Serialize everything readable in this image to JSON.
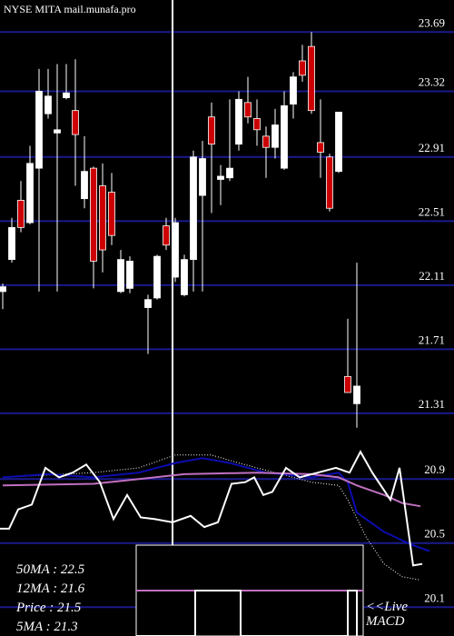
{
  "chart_data": {
    "type": "candlestick",
    "title": "NYSE MITA mail.munafa.pro",
    "x": [
      0,
      1,
      2,
      3,
      4,
      5,
      6,
      7,
      8,
      9,
      10,
      11,
      12,
      13,
      14,
      16,
      17,
      18,
      19,
      20,
      21,
      22,
      23,
      24,
      25,
      26,
      27,
      28,
      29,
      30,
      31,
      32,
      33,
      34,
      35,
      36,
      37,
      38,
      39
    ],
    "open": [
      22.07,
      22.27,
      22.64,
      22.5,
      22.84,
      23.18,
      23.06,
      23.28,
      23.2,
      22.65,
      22.84,
      22.73,
      22.69,
      22.07,
      22.09,
      21.97,
      22.03,
      22.48,
      22.16,
      22.05,
      22.27,
      22.67,
      23.16,
      22.77,
      22.78,
      22.99,
      23.25,
      23.15,
      23.04,
      22.97,
      22.84,
      23.24,
      23.51,
      23.6,
      23.0,
      22.91,
      22.82,
      21.54,
      21.37
    ],
    "high": [
      22.12,
      22.53,
      22.76,
      22.98,
      23.46,
      23.46,
      23.49,
      23.49,
      23.52,
      23.04,
      22.85,
      22.87,
      22.81,
      22.33,
      22.29,
      22.05,
      22.3,
      22.53,
      22.53,
      22.3,
      22.95,
      23.01,
      23.25,
      22.86,
      23.27,
      23.32,
      23.41,
      23.27,
      23.1,
      23.21,
      23.32,
      23.44,
      23.61,
      23.69,
      23.27,
      22.93,
      23.19,
      21.9,
      22.25
    ],
    "low": [
      21.96,
      22.25,
      22.44,
      22.49,
      22.07,
      23.15,
      22.07,
      23.27,
      22.73,
      22.59,
      22.09,
      22.19,
      22.36,
      22.06,
      22.06,
      21.68,
      22.02,
      22.33,
      22.13,
      22.04,
      22.07,
      22.07,
      22.56,
      22.61,
      22.76,
      22.95,
      23.12,
      22.98,
      22.78,
      22.9,
      22.83,
      23.15,
      23.38,
      23.18,
      22.78,
      22.57,
      22.81,
      21.44,
      21.22
    ],
    "close": [
      22.1,
      22.47,
      22.47,
      22.87,
      23.32,
      23.29,
      23.08,
      23.31,
      23.05,
      22.82,
      22.26,
      22.33,
      22.42,
      22.27,
      22.26,
      22.02,
      22.29,
      22.36,
      22.5,
      22.27,
      22.91,
      22.9,
      22.99,
      22.79,
      22.84,
      23.27,
      23.16,
      23.08,
      22.97,
      23.11,
      23.23,
      23.41,
      23.42,
      23.2,
      22.94,
      22.59,
      23.19,
      21.44,
      21.48
    ],
    "up_color": "#ffffff",
    "down_color": "#cc0000",
    "overlays": [
      {
        "color": "#ffffff",
        "style": "dotted",
        "x": [
          0,
          10,
          15,
          19,
          20,
          23,
          26,
          30,
          34,
          37,
          38,
          40,
          42,
          44,
          46
        ],
        "values": [
          20.91,
          20.94,
          20.97,
          21.05,
          21.05,
          21.05,
          21.0,
          20.94,
          20.88,
          20.86,
          20.77,
          20.54,
          20.37,
          20.29,
          20.27
        ]
      },
      {
        "color": "#0c0cb0",
        "style": "solid",
        "x": [
          0,
          5,
          10,
          15,
          19,
          22,
          25,
          29,
          34,
          37,
          38,
          39,
          42,
          45,
          47
        ],
        "values": [
          20.91,
          20.93,
          20.91,
          20.94,
          21.0,
          21.03,
          21.0,
          20.94,
          20.91,
          20.94,
          20.88,
          20.69,
          20.57,
          20.49,
          20.45
        ]
      },
      {
        "color": "#c070c0",
        "style": "solid",
        "x": [
          0,
          10,
          15,
          20,
          28,
          34,
          37,
          39,
          42,
          44,
          46
        ],
        "values": [
          20.86,
          20.87,
          20.9,
          20.93,
          20.94,
          20.93,
          20.91,
          20.86,
          20.8,
          20.75,
          20.73
        ]
      },
      {
        "color": "#ffffff",
        "style": "solid",
        "x": [
          -0.3,
          0.7,
          1.7,
          3.2,
          4.7,
          6.2,
          7.7,
          9.2,
          10.7,
          12.2,
          13.7,
          15.2,
          16.7,
          18.7,
          20.7,
          22.2,
          23.7,
          25.2,
          26.7,
          27.7,
          28.7,
          29.7,
          31.2,
          32.7,
          34.7,
          36.7,
          38.2,
          39.4,
          40.7,
          42.7,
          43.7,
          45.2,
          46.2
        ],
        "values": [
          20.59,
          20.59,
          20.71,
          20.74,
          20.97,
          20.91,
          20.94,
          20.99,
          20.88,
          20.65,
          20.8,
          20.66,
          20.65,
          20.63,
          20.67,
          20.6,
          20.63,
          20.87,
          20.88,
          20.91,
          20.8,
          20.82,
          20.97,
          20.91,
          20.94,
          20.97,
          20.94,
          21.07,
          20.94,
          20.77,
          20.97,
          20.36,
          20.37
        ]
      }
    ],
    "xlim": [
      -0.3,
      49.7
    ],
    "ylim": [
      19.92,
      23.89
    ],
    "yticks": [
      23.69,
      23.32,
      22.91,
      22.51,
      22.11,
      21.71,
      21.31,
      20.9,
      20.5,
      20.1
    ],
    "grid": true,
    "grid_color": "#1a1a8c",
    "info_box": [
      "50MA : 22.5",
      "12MA : 21.6",
      "Price   : 21.5",
      "5MA : 21.3"
    ],
    "live_label": "<<Live",
    "macd_label": "MACD"
  }
}
